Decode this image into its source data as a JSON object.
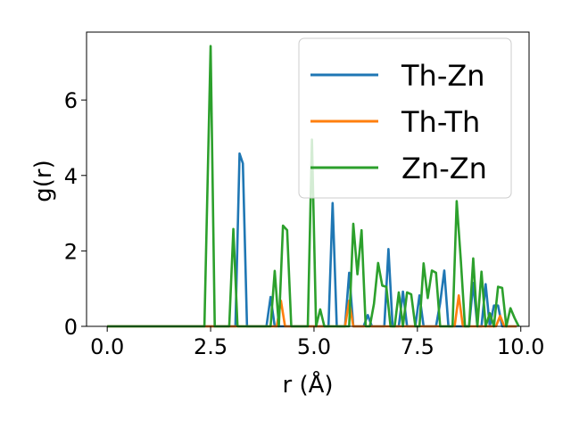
{
  "chart_data": {
    "type": "line",
    "xlabel": "r (Å)",
    "ylabel": "g(r)",
    "xlim": [
      -0.5,
      10.2
    ],
    "ylim": [
      0,
      7.8
    ],
    "xticks": [
      {
        "value": 0.0,
        "label": "0.0"
      },
      {
        "value": 2.5,
        "label": "2.5"
      },
      {
        "value": 5.0,
        "label": "5.0"
      },
      {
        "value": 7.5,
        "label": "7.5"
      },
      {
        "value": 10.0,
        "label": "10.0"
      }
    ],
    "yticks": [
      {
        "value": 0,
        "label": "0"
      },
      {
        "value": 2,
        "label": "2"
      },
      {
        "value": 4,
        "label": "4"
      },
      {
        "value": 6,
        "label": "6"
      }
    ],
    "grid": false,
    "legend_position": "top-right",
    "series": [
      {
        "name": "Th-Zn",
        "color": "#1f77b4",
        "x": [
          0.0,
          3.1,
          3.2,
          3.28,
          3.38,
          3.48,
          3.85,
          3.95,
          4.05,
          5.35,
          5.45,
          5.55,
          5.75,
          5.85,
          5.95,
          6.2,
          6.3,
          6.4,
          6.7,
          6.8,
          6.9,
          7.05,
          7.15,
          7.25,
          7.45,
          7.55,
          7.65,
          7.95,
          8.05,
          8.15,
          8.25,
          8.75,
          8.85,
          8.95,
          9.05,
          9.15,
          9.25,
          9.35,
          9.45,
          9.55,
          9.65,
          9.9
        ],
        "y": [
          0,
          0,
          4.58,
          4.32,
          0,
          0,
          0,
          0.78,
          0,
          0,
          3.27,
          0,
          0,
          1.42,
          0,
          0,
          0.3,
          0,
          0,
          2.05,
          0,
          0,
          0.92,
          0,
          0,
          0.82,
          0,
          0,
          0.62,
          1.48,
          0,
          0,
          1.15,
          0,
          0,
          1.12,
          0,
          0.55,
          0.55,
          0,
          0,
          0
        ]
      },
      {
        "name": "Th-Th",
        "color": "#ff7f0e",
        "x": [
          0.0,
          4.1,
          4.2,
          4.3,
          5.75,
          5.85,
          5.95,
          8.4,
          8.5,
          8.6,
          9.4,
          9.5,
          9.6,
          9.9
        ],
        "y": [
          0,
          0,
          0.68,
          0,
          0,
          0.68,
          0,
          0,
          0.82,
          0,
          0,
          0.28,
          0,
          0
        ]
      },
      {
        "name": "Zn-Zn",
        "color": "#2ca02c",
        "x": [
          0.0,
          2.25,
          2.35,
          2.5,
          2.6,
          2.95,
          3.05,
          3.15,
          3.5,
          3.95,
          4.05,
          4.15,
          4.25,
          4.35,
          4.45,
          4.75,
          4.85,
          4.95,
          5.05,
          5.15,
          5.25,
          5.35,
          5.45,
          5.55,
          5.65,
          5.75,
          5.85,
          5.95,
          6.05,
          6.15,
          6.25,
          6.35,
          6.45,
          6.55,
          6.65,
          6.75,
          6.85,
          6.95,
          7.05,
          7.15,
          7.25,
          7.35,
          7.45,
          7.55,
          7.65,
          7.75,
          7.85,
          7.95,
          8.05,
          8.15,
          8.25,
          8.35,
          8.45,
          8.55,
          8.65,
          8.75,
          8.85,
          8.95,
          9.05,
          9.15,
          9.25,
          9.35,
          9.45,
          9.55,
          9.65,
          9.75,
          9.85,
          9.95
        ],
        "y": [
          0,
          0,
          0,
          7.43,
          0,
          0,
          2.58,
          0,
          0,
          0,
          1.47,
          0,
          2.67,
          2.55,
          0,
          0,
          0,
          4.95,
          0,
          0.45,
          0,
          0,
          0,
          0,
          0,
          0,
          0,
          2.72,
          1.38,
          2.55,
          0,
          0,
          0.6,
          1.68,
          1.08,
          1.05,
          0,
          0,
          0.9,
          0,
          0.9,
          0.85,
          0,
          0,
          1.67,
          0.75,
          1.48,
          1.42,
          0,
          0,
          0,
          0,
          3.32,
          1.75,
          0,
          0,
          1.8,
          0,
          1.45,
          0,
          0.35,
          0,
          1.05,
          1.02,
          0,
          0.48,
          0.22,
          0
        ]
      }
    ]
  }
}
